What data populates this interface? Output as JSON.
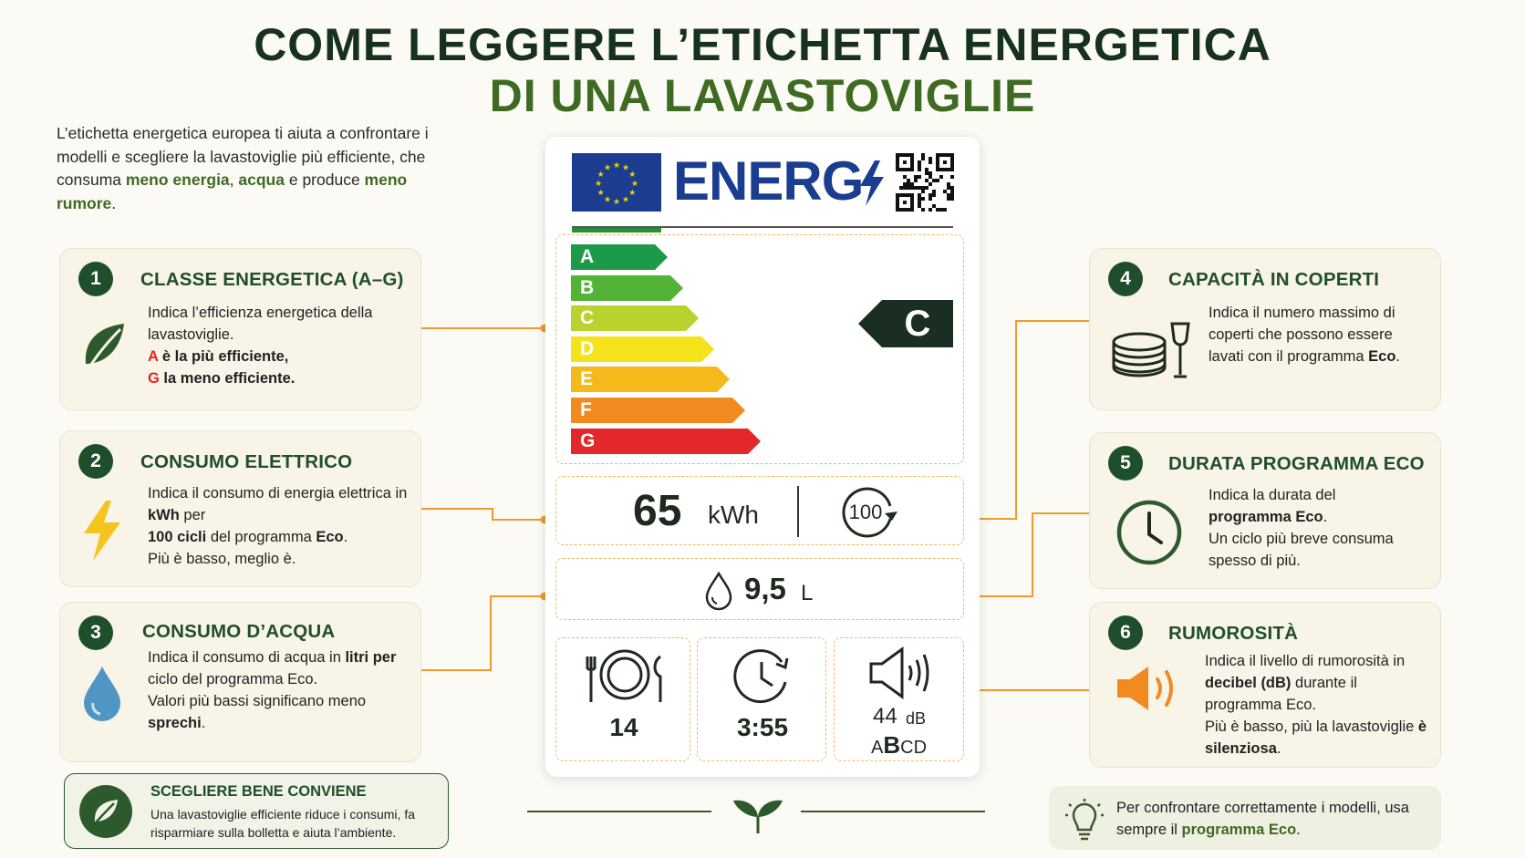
{
  "title": {
    "line1": "COME LEGGERE L’ETICHETTA ENERGETICA",
    "line2": "DI UNA LAVASTOVIGLIE"
  },
  "intro": {
    "text1": "L’etichetta energetica europea ti aiuta a confrontare i modelli e scegliere la lavastoviglie più efficiente, che consuma ",
    "b1": "meno energia",
    "text2": ", ",
    "b2": "acqua",
    "text3": " e produce ",
    "b3": "meno rumore",
    "text4": "."
  },
  "cards": {
    "c1": {
      "num": "1",
      "title": "CLASSE ENERGETICA (A–G)",
      "t1": "Indica l’efficienza energetica della lavastoviglie.",
      "a": "A",
      "t2": " è la più efficiente,",
      "g": "G",
      "t3": " la meno efficiente."
    },
    "c2": {
      "num": "2",
      "title": "CONSUMO ELETTRICO",
      "t1": "Indica il consumo di energia elettrica in ",
      "b1": "kWh",
      "t2": " per",
      "b2": "100 cicli",
      "t3": " del programma ",
      "b3": "Eco",
      "t4": ".",
      "t5": "Più è basso, meglio è."
    },
    "c3": {
      "num": "3",
      "title": "CONSUMO D’ACQUA",
      "t1": "Indica il consumo di acqua in ",
      "b1": "litri per",
      "t2": " ciclo del programma Eco.",
      "t3": "Valori più bassi significano meno ",
      "b2": "sprechi",
      "t4": "."
    },
    "c4": {
      "num": "4",
      "title": "CAPACITÀ IN COPERTI",
      "t1": "Indica il numero massimo di coperti che possono essere lavati con il programma ",
      "b1": "Eco",
      "t2": "."
    },
    "c5": {
      "num": "5",
      "title": "DURATA PROGRAMMA ECO",
      "t1": "Indica la durata del",
      "b1": "programma Eco",
      "t2": ".",
      "t3": "Un ciclo più breve consuma spesso di più."
    },
    "c6": {
      "num": "6",
      "title": "RUMOROSITÀ",
      "t1": "Indica il livello di rumorosità in ",
      "b1": "decibel (dB)",
      "t2": " durante il programma Eco.",
      "t3": "Più è basso, più la lavastoviglie ",
      "b2": "è silenziosa",
      "t4": "."
    }
  },
  "label": {
    "brand": "ENERG",
    "classes": [
      "A",
      "B",
      "C",
      "D",
      "E",
      "F",
      "G"
    ],
    "class_colors": [
      "#1d9a48",
      "#52b337",
      "#b9d22d",
      "#f4e31a",
      "#f5b91c",
      "#f28b1f",
      "#e2282a"
    ],
    "selected_class": "C",
    "energy_value": "65",
    "energy_unit": "kWh",
    "cycles": "100",
    "water_value": "9,5",
    "water_unit": "L",
    "place_settings": "14",
    "duration": "3:55",
    "noise_value": "44",
    "noise_unit": "dB",
    "noise_classes": {
      "a": "A",
      "b": "B",
      "cd": "CD"
    }
  },
  "tip_left": {
    "title": "SCEGLIERE BENE CONVIENE",
    "text": "Una lavastoviglie efficiente riduce i consumi, fa risparmiare sulla bolletta e aiuta l’ambiente."
  },
  "tip_right": {
    "t1": "Per confrontare correttamente i modelli, usa sempre il ",
    "b1": "programma Eco",
    "t2": "."
  },
  "colors": {
    "dark_green": "#1f4f2a",
    "accent_green": "#3f6a22",
    "orange_connector": "#ef9a2a",
    "eu_blue": "#1b3d8f",
    "label_dark": "#1a2e22"
  }
}
